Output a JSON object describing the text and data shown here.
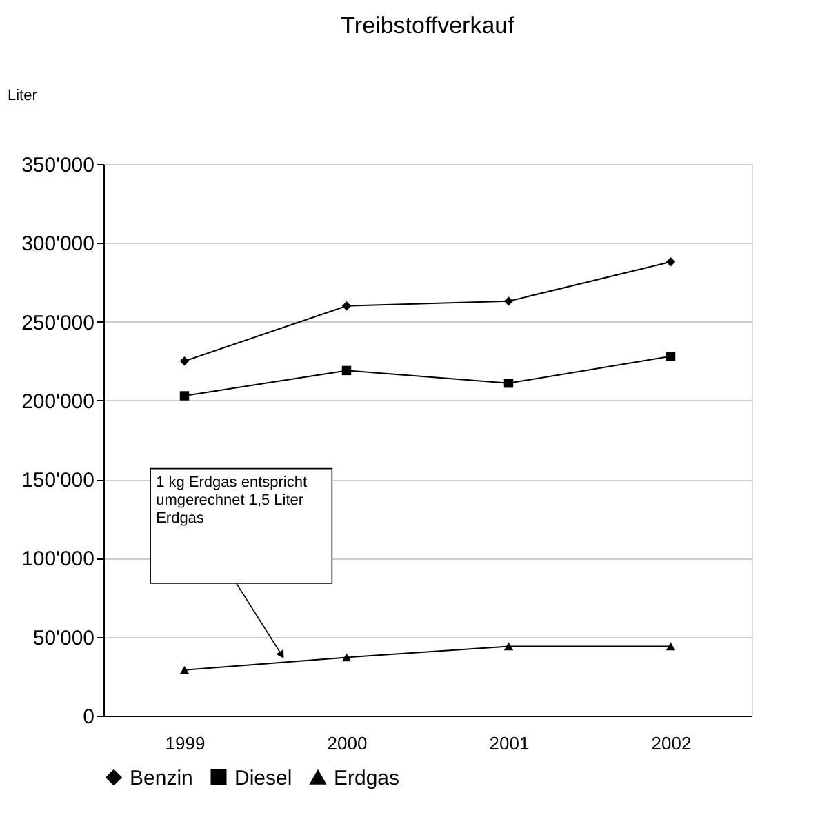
{
  "chart_data": {
    "type": "line",
    "title": "Treibstoffverkauf",
    "ylabel": "Liter",
    "categories": [
      "1999",
      "2000",
      "2001",
      "2002"
    ],
    "series": [
      {
        "name": "Benzin",
        "color": "#000000",
        "marker": "diamond",
        "values": [
          225000,
          260000,
          263000,
          288000
        ]
      },
      {
        "name": "Diesel",
        "color": "#000000",
        "marker": "square",
        "values": [
          203000,
          219000,
          211000,
          228000
        ]
      },
      {
        "name": "Erdgas",
        "color": "#000000",
        "marker": "triangle",
        "values": [
          29000,
          37000,
          44000,
          44000
        ]
      }
    ],
    "ylim": [
      0,
      350000
    ],
    "yticks": [
      {
        "value": 0,
        "label": "0"
      },
      {
        "value": 50000,
        "label": "50'000"
      },
      {
        "value": 100000,
        "label": "100'000"
      },
      {
        "value": 150000,
        "label": "150'000"
      },
      {
        "value": 200000,
        "label": "200'000"
      },
      {
        "value": 250000,
        "label": "250'000"
      },
      {
        "value": 300000,
        "label": "300'000"
      },
      {
        "value": 350000,
        "label": "350'000"
      }
    ],
    "grid": "y",
    "legend": "bottom",
    "line_style": "solid",
    "annotations": [
      "1  kg Erdgas entspricht\numgerechnet  1,5 Liter\nErdgas"
    ]
  }
}
